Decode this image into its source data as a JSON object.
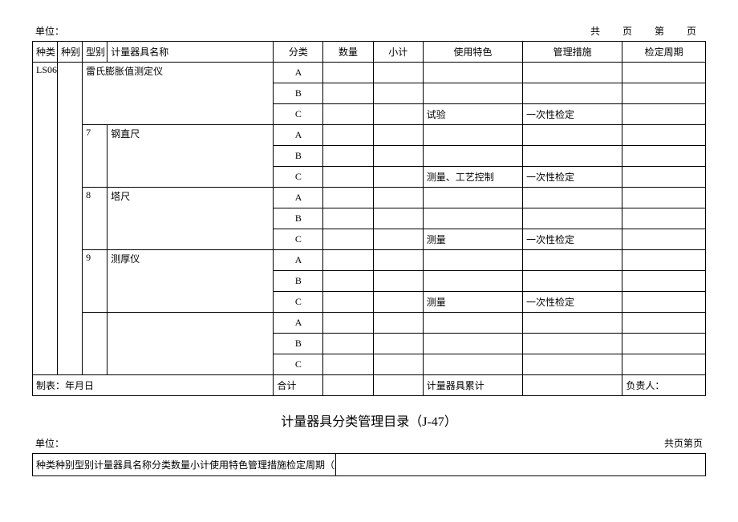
{
  "header": {
    "unit_label": "单位：",
    "page_label": "共　页　第　页"
  },
  "table1": {
    "columns": {
      "c1": "种类",
      "c2": "种别",
      "c3": "型别",
      "c4": "计量器具名称",
      "c5": "分类",
      "c6": "数量",
      "c7": "小计",
      "c8": "使用特色",
      "c9": "管理措施",
      "c10": "检定周期"
    },
    "group_label": "LS06",
    "groups": [
      {
        "num": "",
        "name": "雷氏膨胀值测定仪",
        "rows": [
          {
            "cls": "A",
            "qty": "",
            "sub": "",
            "use": "",
            "mgmt": "",
            "cycle": ""
          },
          {
            "cls": "B",
            "qty": "",
            "sub": "",
            "use": "",
            "mgmt": "",
            "cycle": ""
          },
          {
            "cls": "C",
            "qty": "",
            "sub": "",
            "use": "试验",
            "mgmt": "一次性检定",
            "cycle": ""
          }
        ]
      },
      {
        "num": "7",
        "name": "钢直尺",
        "rows": [
          {
            "cls": "A",
            "qty": "",
            "sub": "",
            "use": "",
            "mgmt": "",
            "cycle": ""
          },
          {
            "cls": "B",
            "qty": "",
            "sub": "",
            "use": "",
            "mgmt": "",
            "cycle": ""
          },
          {
            "cls": "C",
            "qty": "",
            "sub": "",
            "use": "测量、工艺控制",
            "mgmt": "一次性检定",
            "cycle": ""
          }
        ]
      },
      {
        "num": "8",
        "name": "塔尺",
        "rows": [
          {
            "cls": "A",
            "qty": "",
            "sub": "",
            "use": "",
            "mgmt": "",
            "cycle": ""
          },
          {
            "cls": "B",
            "qty": "",
            "sub": "",
            "use": "",
            "mgmt": "",
            "cycle": ""
          },
          {
            "cls": "C",
            "qty": "",
            "sub": "",
            "use": "测量",
            "mgmt": "一次性检定",
            "cycle": ""
          }
        ]
      },
      {
        "num": "9",
        "name": "测厚仪",
        "rows": [
          {
            "cls": "A",
            "qty": "",
            "sub": "",
            "use": "",
            "mgmt": "",
            "cycle": ""
          },
          {
            "cls": "B",
            "qty": "",
            "sub": "",
            "use": "",
            "mgmt": "",
            "cycle": ""
          },
          {
            "cls": "C",
            "qty": "",
            "sub": "",
            "use": "测量",
            "mgmt": "一次性检定",
            "cycle": ""
          }
        ]
      },
      {
        "num": "",
        "name": "",
        "rows": [
          {
            "cls": "A",
            "qty": "",
            "sub": "",
            "use": "",
            "mgmt": "",
            "cycle": ""
          },
          {
            "cls": "B",
            "qty": "",
            "sub": "",
            "use": "",
            "mgmt": "",
            "cycle": ""
          },
          {
            "cls": "C",
            "qty": "",
            "sub": "",
            "use": "",
            "mgmt": "",
            "cycle": ""
          }
        ]
      }
    ],
    "footer": {
      "left": "制表：年月日",
      "total": "合计",
      "accum": "计量器具累计",
      "resp": "负责人："
    }
  },
  "section2": {
    "title": "计量器具分类管理目录（J-47）",
    "unit_label": "单位：",
    "page_label": "共页第页",
    "header_text": "种类种别型别计量器具名称分类数量小计使用特色管理措施检定周期（月）"
  }
}
